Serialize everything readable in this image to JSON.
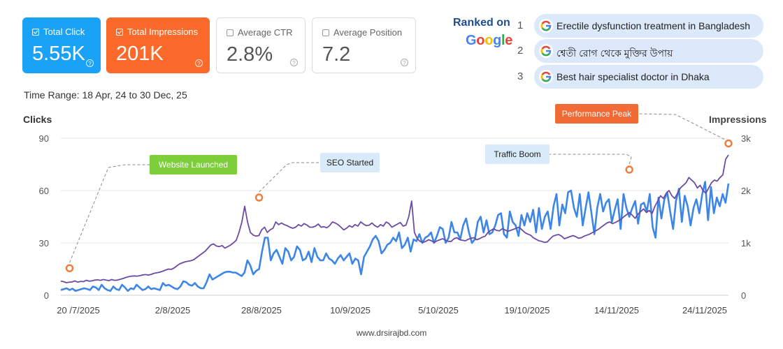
{
  "cards": {
    "click": {
      "label": "Total Click",
      "value": "5.55K"
    },
    "impressions": {
      "label": "Total Impressions",
      "value": "201K"
    },
    "ctr": {
      "label": "Average CTR",
      "value": "2.8%"
    },
    "position": {
      "label": "Average Position",
      "value": "7.2"
    },
    "help_glyph": "?"
  },
  "time_range": "Time Range: 18 Apr, 24 to 30 Dec, 25",
  "ranked": {
    "title": "Ranked on",
    "google_letters": [
      "G",
      "o",
      "o",
      "g",
      "l",
      "e"
    ],
    "google_colors": [
      "#4285F4",
      "#EA4335",
      "#FBBC05",
      "#4285F4",
      "#34A853",
      "#EA4335"
    ],
    "keywords": [
      {
        "rank": "1",
        "text": "Erectile dysfunction treatment in Bangladesh"
      },
      {
        "rank": "2",
        "text": "শ্বেতী রোগ থেকে মুক্তির উপায়"
      },
      {
        "rank": "3",
        "text": "Best hair specialist doctor in Dhaka"
      }
    ]
  },
  "callouts": {
    "launch": "Website Launched",
    "seo": "SEO Started",
    "boom": "Traffic Boom",
    "peak": "Performance Peak"
  },
  "footer": "www.drsirajbd.com",
  "chart_data": {
    "type": "line",
    "x_ticks": [
      "20 /7/2025",
      "2/8/2025",
      "28/8/2025",
      "10/9/2025",
      "5/10/2025",
      "19/10/2025",
      "14/11/2025",
      "24/11/2025"
    ],
    "y_left_label": "Clicks",
    "y_right_label": "Impressions",
    "y_left_ticks": [
      "0",
      "30",
      "60",
      "90"
    ],
    "y_right_ticks": [
      "0",
      "1k",
      "2k",
      "3k"
    ],
    "ylim_left": [
      0,
      90
    ],
    "ylim_right": [
      0,
      3000
    ],
    "grid": true,
    "colors": {
      "clicks": "#3d86e6",
      "impressions": "#6b4ba6",
      "marker": "#f07a3a"
    },
    "series": [
      {
        "key": "clicks",
        "values": [
          3,
          3.5,
          4,
          3,
          3.8,
          2.5,
          3,
          3.5,
          4,
          3.6,
          3,
          5,
          4.5,
          3,
          6,
          4,
          3,
          2.5,
          5,
          3.5,
          3,
          6,
          4.5,
          2.5,
          4,
          3.5,
          6,
          4.5,
          3,
          3.5,
          5,
          3.5,
          4,
          3.5,
          3,
          7,
          5.5,
          6,
          5,
          4,
          3.5,
          5,
          8,
          7.5,
          6,
          5.5,
          7,
          5,
          4,
          4,
          7.5,
          12,
          9,
          10,
          11,
          12,
          13,
          13.5,
          13.5,
          13,
          13,
          12,
          11,
          13,
          20,
          17,
          12,
          14,
          15,
          25,
          33,
          33,
          20,
          24,
          26,
          22,
          18,
          27,
          25,
          20,
          22,
          28,
          26,
          20,
          21,
          25,
          19,
          27,
          22,
          20,
          20,
          24,
          21,
          20,
          18,
          21,
          23,
          20,
          22,
          24,
          18,
          21,
          20,
          12,
          22,
          25,
          28,
          32,
          34,
          31,
          24,
          26,
          29,
          30,
          33,
          31,
          36,
          27,
          29,
          33,
          25,
          32,
          31,
          35,
          30,
          33,
          34,
          36,
          30,
          34,
          39,
          38,
          30,
          33,
          42,
          36,
          36,
          32,
          40,
          44,
          36,
          30,
          32,
          42,
          45,
          36,
          43,
          35,
          36,
          40,
          46,
          47,
          35,
          33,
          48,
          42,
          40,
          34,
          46,
          40,
          47,
          42,
          49,
          36,
          50,
          38,
          45,
          48,
          38,
          51,
          58,
          40,
          52,
          47,
          59,
          60,
          50,
          45,
          58,
          40,
          50,
          59,
          47,
          35,
          50,
          58,
          48,
          53,
          55,
          42,
          49,
          55,
          38,
          58,
          50,
          45,
          50,
          54,
          41,
          52,
          53,
          48,
          58,
          39,
          33,
          56,
          44,
          55,
          59,
          48,
          38,
          54,
          61,
          42,
          57,
          51,
          40,
          50,
          55,
          47,
          58,
          65,
          43,
          62,
          47,
          56,
          51,
          58,
          53,
          64
        ],
        "scale": "left"
      },
      {
        "key": "impressions",
        "values": [
          270,
          260,
          240,
          250,
          255,
          275,
          250,
          265,
          260,
          285,
          270,
          275,
          290,
          295,
          285,
          300,
          290,
          280,
          300,
          285,
          290,
          305,
          320,
          340,
          355,
          365,
          370,
          365,
          375,
          390,
          395,
          385,
          400,
          420,
          430,
          440,
          460,
          480,
          500,
          495,
          520,
          560,
          600,
          620,
          640,
          650,
          660,
          680,
          720,
          760,
          800,
          840,
          900,
          960,
          980,
          940,
          930,
          950,
          900,
          930,
          960,
          1000,
          1050,
          1200,
          1400,
          1700,
          1400,
          1200,
          1150,
          1130,
          1140,
          1250,
          1300,
          1200,
          1250,
          1280,
          1400,
          1350,
          1380,
          1350,
          1330,
          1300,
          1280,
          1300,
          1350,
          1320,
          1370,
          1340,
          1300,
          1300,
          1320,
          1360,
          1300,
          1310,
          1290,
          1330,
          1400,
          1380,
          1350,
          1300,
          1250,
          1280,
          1330,
          1300,
          1350,
          1320,
          1400,
          1360,
          1330,
          1340,
          1380,
          1330,
          1300,
          1350,
          1320,
          1400,
          1370,
          1300,
          1330,
          1360,
          1390,
          1320,
          1340,
          1500,
          1800,
          1200,
          1080,
          1030,
          1010,
          1030,
          1060,
          1040,
          1010,
          1040,
          1060,
          1080,
          1050,
          1030,
          1030,
          1080,
          1100,
          1060,
          1050,
          1040,
          1070,
          1090,
          1100,
          1060,
          1080,
          1110,
          1130,
          1200,
          1240,
          1270,
          1240,
          1230,
          1270,
          1250,
          1220,
          1240,
          1260,
          1280,
          1300,
          1250,
          1200,
          1170,
          1150,
          1100,
          1070,
          1040,
          1030,
          1010,
          1020,
          1080,
          1130,
          1150,
          1160,
          1130,
          1080,
          1100,
          1120,
          1140,
          1120,
          1090,
          1100,
          1130,
          1150,
          1170,
          1200,
          1230,
          1260,
          1300,
          1340,
          1380,
          1400,
          1370,
          1390,
          1420,
          1450,
          1500,
          1540,
          1580,
          1530,
          1470,
          1550,
          1600,
          1650,
          1580,
          1620,
          1560,
          1700,
          1800,
          1900,
          1850,
          1950,
          2000,
          1900,
          1850,
          1950,
          2050,
          2100,
          2150,
          2250,
          2200,
          2150,
          2050,
          2100,
          2000,
          1950,
          2050,
          2150,
          2200,
          2180,
          2250,
          2300,
          2600,
          2680
        ],
        "scale": "right"
      }
    ],
    "markers": [
      {
        "at": "launch",
        "x_index": 3,
        "clicks_value": 15.5
      },
      {
        "at": "seo",
        "x_index": 68,
        "clicks_value": 56
      },
      {
        "at": "boom",
        "x_index": 195,
        "clicks_value": 72
      },
      {
        "at": "peak",
        "x_index": 229,
        "clicks_value": 87
      }
    ]
  }
}
